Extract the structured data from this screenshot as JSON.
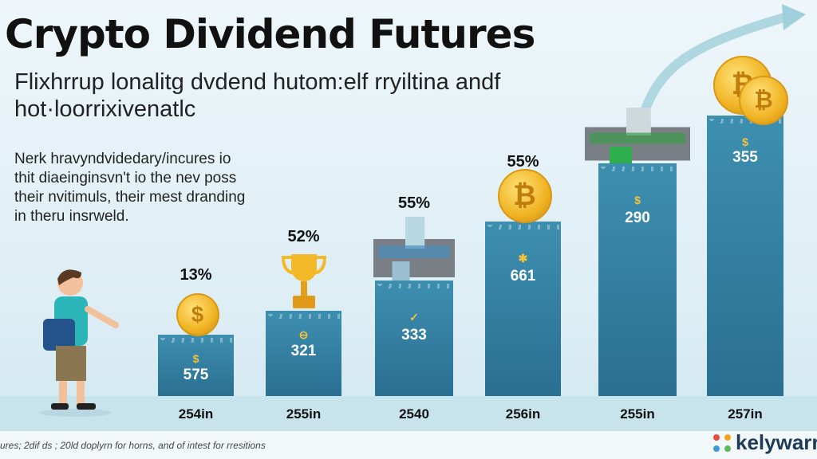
{
  "header": {
    "title": "Crypto Dividend Futures",
    "subtitle": "Flixhrrup lonalitg dvdend hutom:elf rryiltina andf hot·loorrixivenatlc",
    "description": "Nerk hravyndvidedary/incures io thit diaeinginsvn't io the nev poss their nvitimuls, their mest dranding in theru insrweld."
  },
  "chart_data": {
    "type": "bar",
    "categories": [
      "254in",
      "255in",
      "2540",
      "256in",
      "255in",
      "257in"
    ],
    "values": [
      575,
      321,
      333,
      661,
      290,
      355
    ],
    "percent_labels": [
      "13%",
      "52%",
      "55%",
      "55%",
      "",
      ""
    ],
    "bar_icons": [
      "dollar-coin",
      "trophy",
      "city-building",
      "bitcoin-coin",
      "cash-building",
      "bitcoin-coins"
    ],
    "bar_color": "#2f7fa3",
    "coin_color": "#f0b323"
  },
  "footer": {
    "text": "ures; 2dif ds ; 20ld doplyrn for horns, and of intest for rresitions",
    "brand": "kelywarr"
  }
}
